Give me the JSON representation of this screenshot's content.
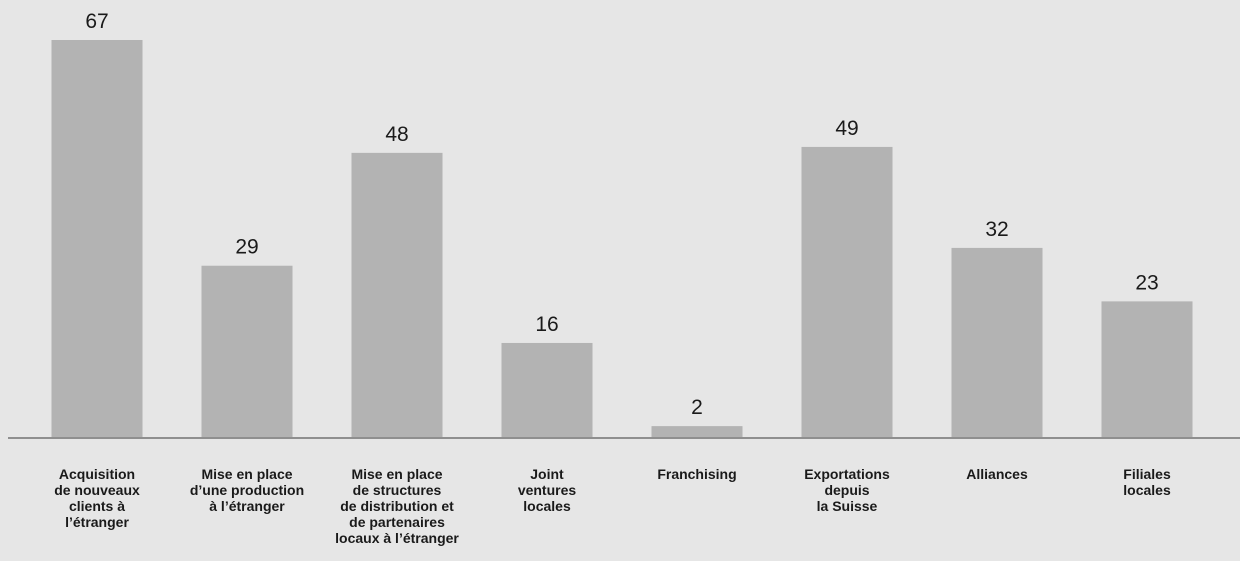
{
  "chart_data": {
    "type": "bar",
    "categories": [
      "Acquisition\nde nouveaux\nclients à\nl’étranger",
      "Mise en place\nd’une production\nà l’étranger",
      "Mise en place\nde structures\nde distribution et\nde partenaires\nlocaux à l’étranger",
      "Joint\nventures\nlocales",
      "Franchising",
      "Exportations\ndepuis\nla Suisse",
      "Alliances",
      "Filiales\nlocales"
    ],
    "values": [
      67,
      29,
      48,
      16,
      2,
      49,
      32,
      23
    ],
    "ylim": [
      0,
      67
    ],
    "grid": false,
    "colors": {
      "bar": "#b3b3b3",
      "background": "#e6e6e6",
      "axis": "#8f8f8f"
    }
  }
}
